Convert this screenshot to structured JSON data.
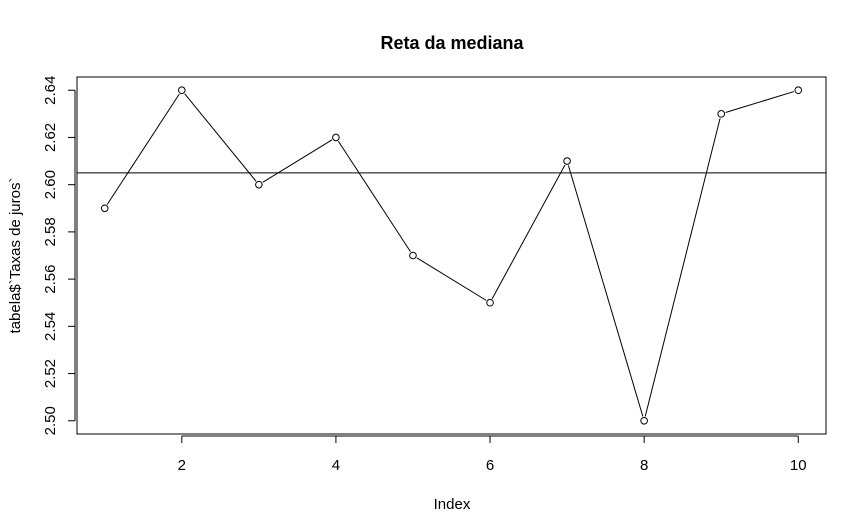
{
  "chart_data": {
    "type": "line",
    "title": "Reta da mediana",
    "xlabel": "Index",
    "ylabel": "tabela$`Taxas de juros`",
    "x": [
      1,
      2,
      3,
      4,
      5,
      6,
      7,
      8,
      9,
      10
    ],
    "series": [
      {
        "values": [
          2.59,
          2.64,
          2.6,
          2.62,
          2.57,
          2.55,
          2.61,
          2.5,
          2.63,
          2.64
        ]
      }
    ],
    "median_line": 2.605,
    "xlim": [
      0.64,
      10.36
    ],
    "ylim": [
      2.4944,
      2.6456
    ],
    "x_ticks": [
      2,
      4,
      6,
      8,
      10
    ],
    "y_ticks": [
      "2.50",
      "2.52",
      "2.54",
      "2.56",
      "2.58",
      "2.60",
      "2.62",
      "2.64"
    ],
    "point_marker": "open-circle",
    "line_color": "#000000",
    "grid": false
  }
}
